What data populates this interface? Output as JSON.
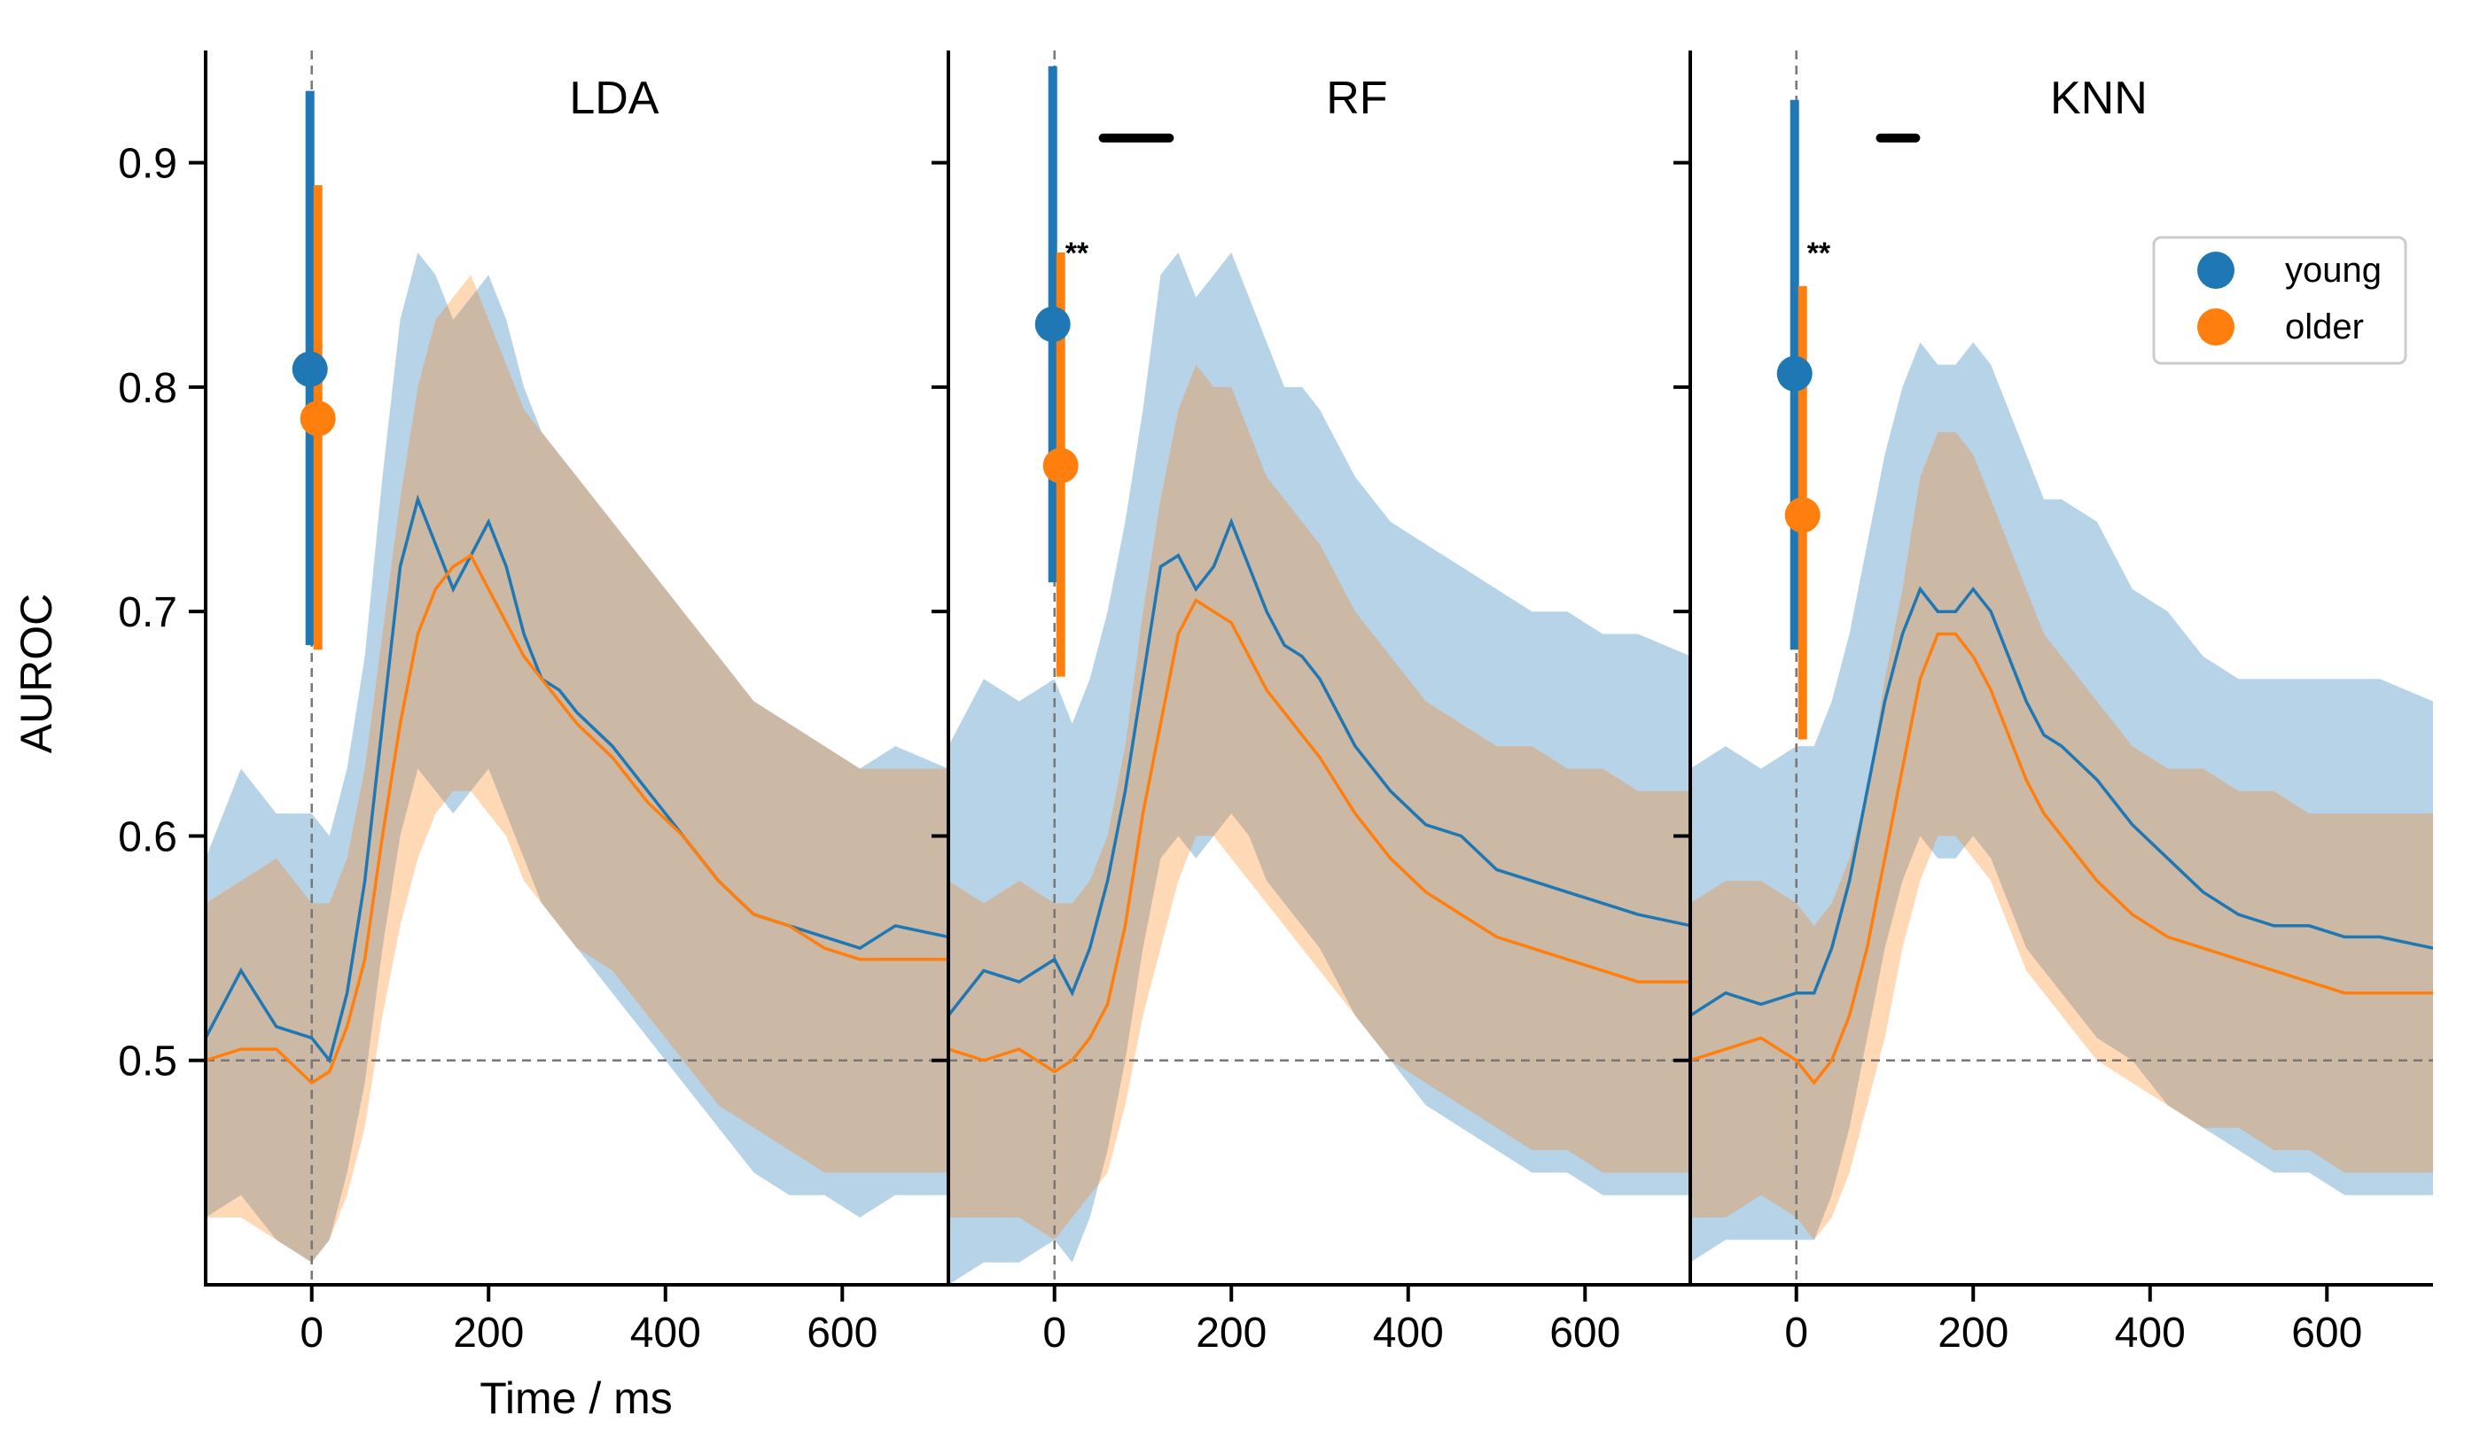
{
  "chart_data": {
    "type": "line",
    "ylabel": "AUROC",
    "xlabel": "Time / ms",
    "ylim": [
      0.4,
      0.95
    ],
    "xlim": [
      -120,
      720
    ],
    "yticks": [
      0.5,
      0.6,
      0.7,
      0.8,
      0.9
    ],
    "ytick_labels": [
      "0.5",
      "0.6",
      "0.7",
      "0.8",
      "0.9"
    ],
    "xticks": [
      0,
      200,
      400,
      600
    ],
    "xtick_labels": [
      "0",
      "200",
      "400",
      "600"
    ],
    "chance_level": 0.5,
    "stimulus_onset_ms": 0,
    "legend": {
      "placement": "top-right",
      "entries": [
        {
          "label": "young",
          "color": "#1f77b4"
        },
        {
          "label": "older",
          "color": "#ff7f0e"
        }
      ]
    },
    "panels": [
      {
        "title": "LDA",
        "peak_summary": {
          "young": {
            "mean": 0.808,
            "low": 0.685,
            "high": 0.932
          },
          "older": {
            "mean": 0.786,
            "low": 0.683,
            "high": 0.89
          }
        },
        "significance_marker": "",
        "significance_bars": [],
        "series": [
          {
            "name": "young",
            "x": [
              -120,
              -80,
              -40,
              0,
              20,
              40,
              60,
              80,
              100,
              120,
              140,
              160,
              180,
              200,
              220,
              240,
              260,
              280,
              300,
              340,
              380,
              420,
              460,
              500,
              540,
              580,
              620,
              660,
              720
            ],
            "values": [
              0.51,
              0.54,
              0.515,
              0.51,
              0.5,
              0.53,
              0.58,
              0.65,
              0.72,
              0.75,
              0.73,
              0.71,
              0.725,
              0.74,
              0.72,
              0.69,
              0.67,
              0.665,
              0.655,
              0.64,
              0.62,
              0.6,
              0.58,
              0.565,
              0.56,
              0.555,
              0.55,
              0.56,
              0.555
            ],
            "ci_low": [
              0.43,
              0.44,
              0.42,
              0.41,
              0.42,
              0.45,
              0.49,
              0.55,
              0.6,
              0.63,
              0.62,
              0.61,
              0.62,
              0.63,
              0.61,
              0.59,
              0.57,
              0.56,
              0.55,
              0.53,
              0.51,
              0.49,
              0.47,
              0.45,
              0.44,
              0.44,
              0.43,
              0.44,
              0.44
            ],
            "ci_high": [
              0.59,
              0.63,
              0.61,
              0.61,
              0.6,
              0.63,
              0.68,
              0.76,
              0.83,
              0.86,
              0.85,
              0.83,
              0.84,
              0.85,
              0.83,
              0.8,
              0.78,
              0.77,
              0.76,
              0.74,
              0.72,
              0.7,
              0.68,
              0.66,
              0.65,
              0.64,
              0.63,
              0.64,
              0.63
            ]
          },
          {
            "name": "older",
            "x": [
              -120,
              -80,
              -40,
              0,
              20,
              40,
              60,
              80,
              100,
              120,
              140,
              160,
              180,
              200,
              220,
              240,
              260,
              280,
              300,
              340,
              380,
              420,
              460,
              500,
              540,
              580,
              620,
              660,
              720
            ],
            "values": [
              0.5,
              0.505,
              0.505,
              0.49,
              0.495,
              0.515,
              0.545,
              0.6,
              0.65,
              0.69,
              0.71,
              0.72,
              0.725,
              0.71,
              0.695,
              0.68,
              0.67,
              0.66,
              0.65,
              0.635,
              0.615,
              0.6,
              0.58,
              0.565,
              0.56,
              0.55,
              0.545,
              0.545,
              0.545
            ],
            "ci_low": [
              0.43,
              0.43,
              0.42,
              0.41,
              0.42,
              0.44,
              0.47,
              0.52,
              0.56,
              0.59,
              0.61,
              0.62,
              0.62,
              0.61,
              0.6,
              0.58,
              0.57,
              0.56,
              0.55,
              0.54,
              0.52,
              0.5,
              0.48,
              0.47,
              0.46,
              0.45,
              0.45,
              0.45,
              0.45
            ],
            "ci_high": [
              0.57,
              0.58,
              0.59,
              0.57,
              0.57,
              0.59,
              0.63,
              0.69,
              0.75,
              0.8,
              0.83,
              0.84,
              0.85,
              0.83,
              0.81,
              0.79,
              0.78,
              0.77,
              0.76,
              0.74,
              0.72,
              0.7,
              0.68,
              0.66,
              0.65,
              0.64,
              0.63,
              0.63,
              0.63
            ]
          }
        ]
      },
      {
        "title": "RF",
        "peak_summary": {
          "young": {
            "mean": 0.828,
            "low": 0.713,
            "high": 0.943
          },
          "older": {
            "mean": 0.765,
            "low": 0.671,
            "high": 0.86
          }
        },
        "significance_marker": "**",
        "significance_bars": [
          {
            "start": 55,
            "end": 130
          }
        ],
        "series": [
          {
            "name": "young",
            "x": [
              -120,
              -80,
              -40,
              0,
              20,
              40,
              60,
              80,
              100,
              120,
              140,
              160,
              180,
              200,
              220,
              240,
              260,
              280,
              300,
              340,
              380,
              420,
              460,
              500,
              540,
              580,
              620,
              660,
              720
            ],
            "values": [
              0.52,
              0.54,
              0.535,
              0.545,
              0.53,
              0.55,
              0.58,
              0.62,
              0.67,
              0.72,
              0.725,
              0.71,
              0.72,
              0.74,
              0.72,
              0.7,
              0.685,
              0.68,
              0.67,
              0.64,
              0.62,
              0.605,
              0.6,
              0.585,
              0.58,
              0.575,
              0.57,
              0.565,
              0.56
            ],
            "ci_low": [
              0.4,
              0.41,
              0.41,
              0.42,
              0.41,
              0.43,
              0.46,
              0.5,
              0.55,
              0.59,
              0.6,
              0.59,
              0.6,
              0.61,
              0.6,
              0.58,
              0.57,
              0.56,
              0.55,
              0.52,
              0.5,
              0.48,
              0.47,
              0.46,
              0.45,
              0.45,
              0.44,
              0.44,
              0.44
            ],
            "ci_high": [
              0.64,
              0.67,
              0.66,
              0.67,
              0.65,
              0.67,
              0.7,
              0.74,
              0.79,
              0.85,
              0.86,
              0.84,
              0.85,
              0.86,
              0.84,
              0.82,
              0.8,
              0.8,
              0.79,
              0.76,
              0.74,
              0.73,
              0.72,
              0.71,
              0.7,
              0.7,
              0.69,
              0.69,
              0.68
            ]
          },
          {
            "name": "older",
            "x": [
              -120,
              -80,
              -40,
              0,
              20,
              40,
              60,
              80,
              100,
              120,
              140,
              160,
              180,
              200,
              220,
              240,
              260,
              280,
              300,
              340,
              380,
              420,
              460,
              500,
              540,
              580,
              620,
              660,
              720
            ],
            "values": [
              0.505,
              0.5,
              0.505,
              0.495,
              0.5,
              0.51,
              0.525,
              0.56,
              0.61,
              0.65,
              0.69,
              0.705,
              0.7,
              0.695,
              0.68,
              0.665,
              0.655,
              0.645,
              0.635,
              0.61,
              0.59,
              0.575,
              0.565,
              0.555,
              0.55,
              0.545,
              0.54,
              0.535,
              0.535
            ],
            "ci_low": [
              0.43,
              0.43,
              0.43,
              0.42,
              0.43,
              0.44,
              0.45,
              0.48,
              0.52,
              0.55,
              0.58,
              0.6,
              0.6,
              0.59,
              0.58,
              0.57,
              0.56,
              0.55,
              0.54,
              0.52,
              0.5,
              0.49,
              0.48,
              0.47,
              0.46,
              0.46,
              0.45,
              0.45,
              0.45
            ],
            "ci_high": [
              0.58,
              0.57,
              0.58,
              0.57,
              0.57,
              0.58,
              0.6,
              0.64,
              0.7,
              0.75,
              0.79,
              0.81,
              0.8,
              0.8,
              0.78,
              0.76,
              0.75,
              0.74,
              0.73,
              0.7,
              0.68,
              0.66,
              0.65,
              0.64,
              0.64,
              0.63,
              0.63,
              0.62,
              0.62
            ]
          }
        ]
      },
      {
        "title": "KNN",
        "peak_summary": {
          "young": {
            "mean": 0.806,
            "low": 0.683,
            "high": 0.928
          },
          "older": {
            "mean": 0.743,
            "low": 0.643,
            "high": 0.845
          }
        },
        "significance_marker": "**",
        "significance_bars": [
          {
            "start": 95,
            "end": 135
          }
        ],
        "series": [
          {
            "name": "young",
            "x": [
              -120,
              -80,
              -40,
              0,
              20,
              40,
              60,
              80,
              100,
              120,
              140,
              160,
              180,
              200,
              220,
              240,
              260,
              280,
              300,
              340,
              380,
              420,
              460,
              500,
              540,
              580,
              620,
              660,
              720
            ],
            "values": [
              0.52,
              0.53,
              0.525,
              0.53,
              0.53,
              0.55,
              0.58,
              0.62,
              0.66,
              0.69,
              0.71,
              0.7,
              0.7,
              0.71,
              0.7,
              0.68,
              0.66,
              0.645,
              0.64,
              0.625,
              0.605,
              0.59,
              0.575,
              0.565,
              0.56,
              0.56,
              0.555,
              0.555,
              0.55
            ],
            "ci_low": [
              0.41,
              0.42,
              0.42,
              0.42,
              0.42,
              0.44,
              0.47,
              0.51,
              0.55,
              0.58,
              0.6,
              0.59,
              0.59,
              0.6,
              0.59,
              0.57,
              0.55,
              0.54,
              0.53,
              0.51,
              0.5,
              0.48,
              0.47,
              0.46,
              0.45,
              0.45,
              0.44,
              0.44,
              0.44
            ],
            "ci_high": [
              0.63,
              0.64,
              0.63,
              0.64,
              0.64,
              0.66,
              0.69,
              0.73,
              0.77,
              0.8,
              0.82,
              0.81,
              0.81,
              0.82,
              0.81,
              0.79,
              0.77,
              0.75,
              0.75,
              0.74,
              0.71,
              0.7,
              0.68,
              0.67,
              0.67,
              0.67,
              0.67,
              0.67,
              0.66
            ]
          },
          {
            "name": "older",
            "x": [
              -120,
              -80,
              -40,
              0,
              20,
              40,
              60,
              80,
              100,
              120,
              140,
              160,
              180,
              200,
              220,
              240,
              260,
              280,
              300,
              340,
              380,
              420,
              460,
              500,
              540,
              580,
              620,
              660,
              720
            ],
            "values": [
              0.5,
              0.505,
              0.51,
              0.5,
              0.49,
              0.5,
              0.52,
              0.55,
              0.59,
              0.63,
              0.67,
              0.69,
              0.69,
              0.68,
              0.665,
              0.645,
              0.625,
              0.61,
              0.6,
              0.58,
              0.565,
              0.555,
              0.55,
              0.545,
              0.54,
              0.535,
              0.53,
              0.53,
              0.53
            ],
            "ci_low": [
              0.43,
              0.43,
              0.44,
              0.43,
              0.42,
              0.43,
              0.45,
              0.48,
              0.51,
              0.55,
              0.58,
              0.6,
              0.6,
              0.59,
              0.58,
              0.56,
              0.54,
              0.53,
              0.52,
              0.5,
              0.49,
              0.48,
              0.47,
              0.47,
              0.46,
              0.46,
              0.45,
              0.45,
              0.45
            ],
            "ci_high": [
              0.57,
              0.58,
              0.58,
              0.57,
              0.56,
              0.57,
              0.59,
              0.62,
              0.67,
              0.71,
              0.76,
              0.78,
              0.78,
              0.77,
              0.75,
              0.73,
              0.71,
              0.69,
              0.68,
              0.66,
              0.64,
              0.63,
              0.63,
              0.62,
              0.62,
              0.61,
              0.61,
              0.61,
              0.61
            ]
          }
        ]
      }
    ]
  }
}
